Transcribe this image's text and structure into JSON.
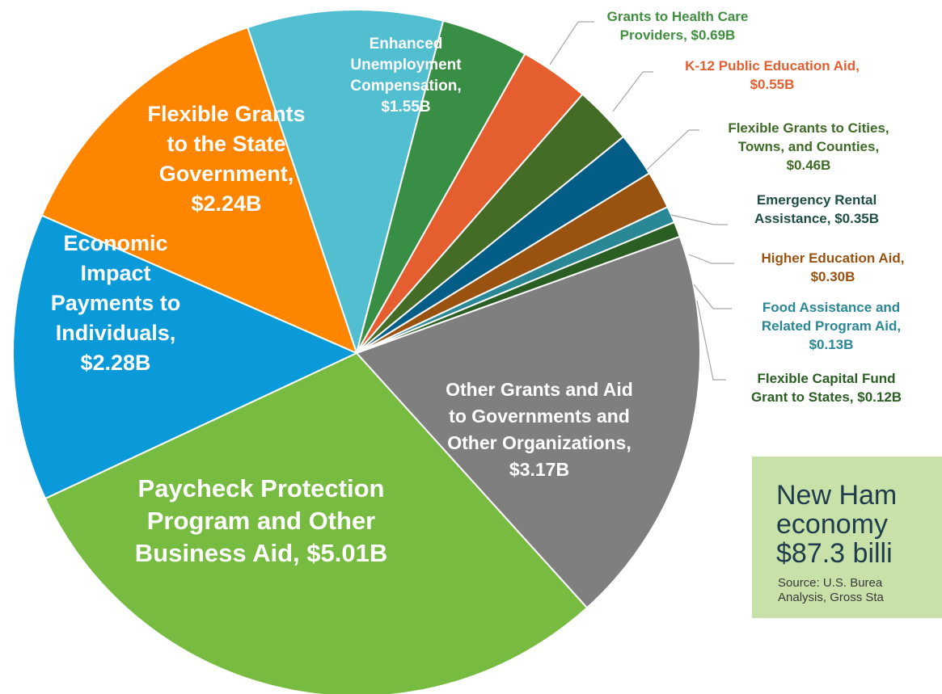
{
  "chart_data": {
    "type": "pie",
    "title": "",
    "slices": [
      {
        "label_lines": [
          "Enhanced",
          "Unemployment",
          "Compensation,",
          "$1.55B"
        ],
        "category": "Enhanced Unemployment Compensation",
        "value": 1.55,
        "color": "#52bfd0"
      },
      {
        "label_lines": [
          "Grants to Health Care",
          "Providers, $0.69B"
        ],
        "category": "Grants to Health Care Providers",
        "value": 0.69,
        "color": "#388e44"
      },
      {
        "label_lines": [
          "K-12 Public Education Aid,",
          "$0.55B"
        ],
        "category": "K-12 Public Education Aid",
        "value": 0.55,
        "color": "#e55e30"
      },
      {
        "label_lines": [
          "Flexible Grants to Cities,",
          "Towns, and Counties,",
          "$0.46B"
        ],
        "category": "Flexible Grants to Cities, Towns, and Counties",
        "value": 0.46,
        "color": "#456c27"
      },
      {
        "label_lines": [
          "Emergency Rental",
          "Assistance, $0.35B"
        ],
        "category": "Emergency Rental Assistance",
        "value": 0.35,
        "color": "#035d87"
      },
      {
        "label_lines": [
          "Higher Education Aid,",
          "$0.30B"
        ],
        "category": "Higher Education Aid",
        "value": 0.3,
        "color": "#9a5211"
      },
      {
        "label_lines": [
          "Food Assistance and",
          "Related Program Aid,",
          "$0.13B"
        ],
        "category": "Food Assistance and Related Program Aid",
        "value": 0.13,
        "color": "#2a8795"
      },
      {
        "label_lines": [
          "Flexible Capital Fund",
          "Grant to States, $0.12B"
        ],
        "category": "Flexible Capital Fund Grant to States",
        "value": 0.12,
        "color": "#2b5e22"
      },
      {
        "label_lines": [
          "Other Grants and Aid",
          "to Governments and",
          "Other Organizations,",
          "$3.17B"
        ],
        "category": "Other Grants and Aid to Governments and Other Organizations",
        "value": 3.17,
        "color": "#7f7f7f"
      },
      {
        "label_lines": [
          "Paycheck Protection",
          "Program and Other",
          "Business Aid, $5.01B"
        ],
        "category": "Paycheck Protection Program and Other Business Aid",
        "value": 5.01,
        "color": "#77bb41"
      },
      {
        "label_lines": [
          "Economic",
          "Impact",
          "Payments to",
          "Individuals,",
          "$2.28B"
        ],
        "category": "Economic Impact Payments to Individuals",
        "value": 2.28,
        "color": "#0b9ad9"
      },
      {
        "label_lines": [
          "Flexible Grants",
          "to the State",
          "Government,",
          "$2.24B"
        ],
        "category": "Flexible Grants to the State Government",
        "value": 2.24,
        "color": "#fe8500"
      }
    ],
    "outside_label_colors": {
      "Grants to Health Care Providers": "#3f8f3f",
      "K-12 Public Education Aid": "#e55e30",
      "Flexible Grants to Cities, Towns, and Counties": "#3e6b26",
      "Emergency Rental Assistance": "#1f4e46",
      "Higher Education Aid": "#9a5211",
      "Food Assistance and Related Program Aid": "#2a8795",
      "Flexible Capital Fund Grant to States": "#2b5e22"
    }
  },
  "callout": {
    "heading_lines": [
      "New Ham",
      "economy",
      "$87.3 billi"
    ],
    "source_lines": [
      "Source:  U.S. Burea",
      "Analysis, Gross Sta"
    ],
    "background": "#c7e1a8",
    "text_color": "#1f3b4d"
  }
}
